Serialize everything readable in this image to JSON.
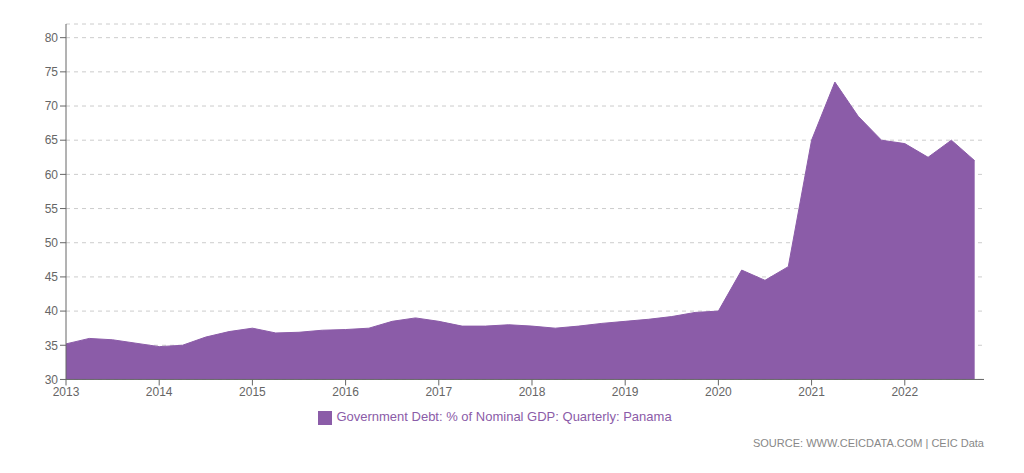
{
  "chart_data": {
    "type": "area",
    "x": [
      2013.0,
      2013.25,
      2013.5,
      2013.75,
      2014.0,
      2014.25,
      2014.5,
      2014.75,
      2015.0,
      2015.25,
      2015.5,
      2015.75,
      2016.0,
      2016.25,
      2016.5,
      2016.75,
      2017.0,
      2017.25,
      2017.5,
      2017.75,
      2018.0,
      2018.25,
      2018.5,
      2018.75,
      2019.0,
      2019.25,
      2019.5,
      2019.75,
      2020.0,
      2020.25,
      2020.5,
      2020.75,
      2021.0,
      2021.25,
      2021.5,
      2021.75,
      2022.0,
      2022.25,
      2022.5,
      2022.75
    ],
    "series": [
      {
        "name": "Government Debt: % of Nominal GDP: Quarterly: Panama",
        "color": "#8B5CA8",
        "values": [
          35.2,
          36.0,
          35.8,
          35.3,
          34.8,
          35.0,
          36.2,
          37.0,
          37.5,
          36.8,
          36.9,
          37.2,
          37.3,
          37.5,
          38.5,
          39.0,
          38.5,
          37.8,
          37.8,
          38.0,
          37.8,
          37.5,
          37.8,
          38.2,
          38.5,
          38.8,
          39.2,
          39.8,
          40.0,
          46.0,
          44.5,
          46.5,
          65.0,
          73.5,
          68.5,
          65.0,
          64.5,
          62.5,
          65.0,
          62.0
        ]
      }
    ],
    "xlim": [
      2013.0,
      2022.85
    ],
    "xticks": [
      2013,
      2014,
      2015,
      2016,
      2017,
      2018,
      2019,
      2020,
      2021,
      2022
    ],
    "ylim": [
      30,
      82
    ],
    "yticks": [
      30,
      35,
      40,
      45,
      50,
      55,
      60,
      65,
      70,
      75,
      80
    ],
    "grid": true,
    "legend": "bottom",
    "annotation": "SOURCE: WWW.CEICDATA.COM | CEIC Data"
  }
}
